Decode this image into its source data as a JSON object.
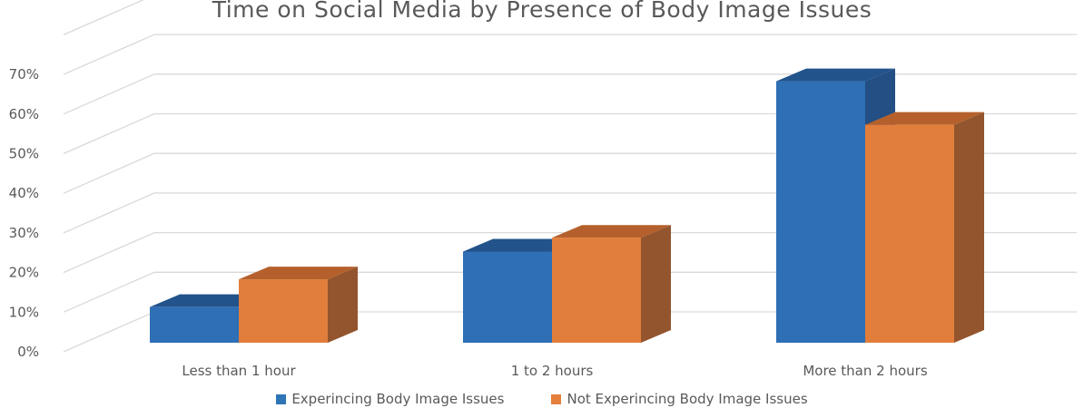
{
  "chart_data": {
    "type": "bar",
    "title": "Time on Social Media by Presence of Body Image Issues",
    "categories": [
      "Less than 1 hour",
      "1 to 2 hours",
      "More than 2 hours"
    ],
    "series": [
      {
        "name": "Experincing Body Image Issues",
        "values": [
          9,
          23,
          66
        ],
        "color": "#2E75B6"
      },
      {
        "name": "Not Experincing Body Image Issues",
        "values": [
          16,
          26.5,
          55
        ],
        "color": "#E47F3C"
      }
    ],
    "xlabel": "",
    "ylabel": "",
    "yticks": [
      "0%",
      "10%",
      "20%",
      "30%",
      "40%",
      "50%",
      "60%",
      "70%"
    ],
    "ylim": [
      0,
      80
    ],
    "grid": true,
    "style": "3d-clustered-column",
    "legend_position": "bottom"
  }
}
